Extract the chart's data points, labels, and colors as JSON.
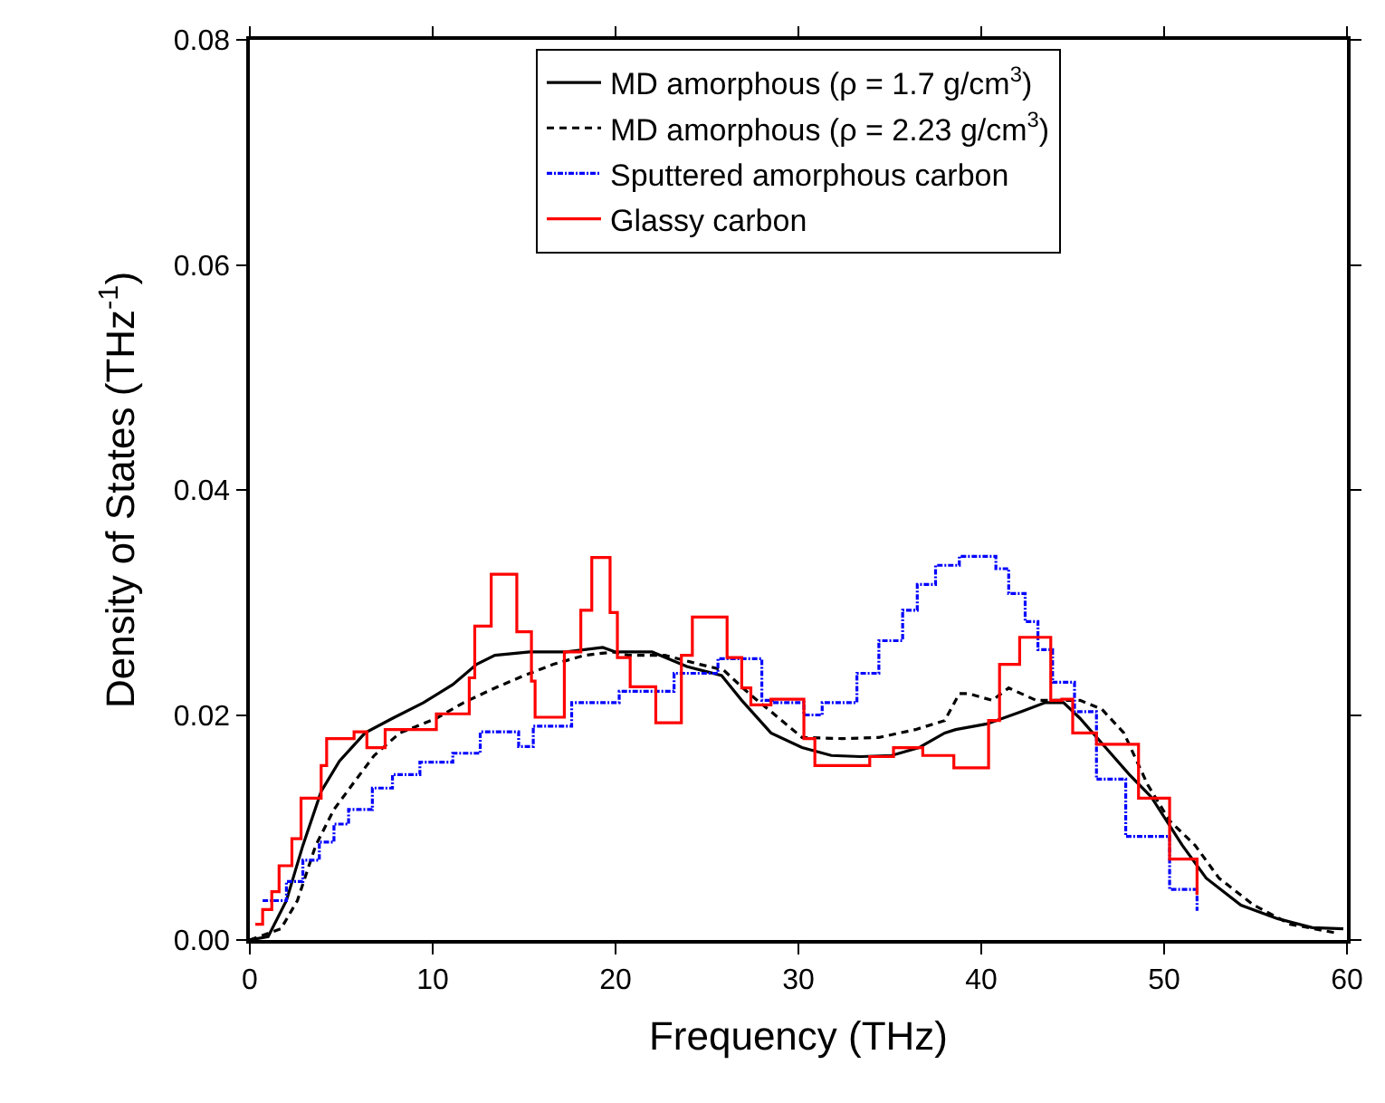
{
  "chart_data": {
    "type": "line",
    "xlabel": "Frequency (THz)",
    "ylabel": "Density of States (THz$^{-1}$)",
    "xlim": [
      0,
      60
    ],
    "xticks": [
      0,
      10,
      20,
      30,
      40,
      50,
      60
    ],
    "ylim": [
      0,
      0.08
    ],
    "yticks": [
      {
        "value": 0,
        "label": "0.00"
      },
      {
        "value": 0.02,
        "label": "0.02"
      },
      {
        "value": 0.04,
        "label": "0.04"
      },
      {
        "value": 0.06,
        "label": "0.06"
      },
      {
        "value": 0.08,
        "label": "0.08"
      }
    ],
    "legend": "top",
    "marker": "none",
    "series": [
      {
        "name": "MD amorphous (ρ = 1.7 g/cm$^{3}$)",
        "color": "#000000",
        "line_style": "solid",
        "x": [
          0,
          1.0,
          2.0,
          2.9,
          3.9,
          4.9,
          6.3,
          7.8,
          9.5,
          11.1,
          12.4,
          13.4,
          15.3,
          17.3,
          19.3,
          20.0,
          22.0,
          23.9,
          25.8,
          26.9,
          28.5,
          30.2,
          31.8,
          33.4,
          35.1,
          36.6,
          38.0,
          38.6,
          40.3,
          42.2,
          43.5,
          44.5,
          45.4,
          46.8,
          48.1,
          49.3,
          51.0,
          52.3,
          54.2,
          56.2,
          58.1,
          59.8
        ],
        "values": [
          0,
          0.0003,
          0.0035,
          0.0084,
          0.0132,
          0.0159,
          0.0184,
          0.0197,
          0.0211,
          0.0227,
          0.0245,
          0.0253,
          0.0256,
          0.0256,
          0.026,
          0.0256,
          0.0256,
          0.0243,
          0.0235,
          0.0213,
          0.0184,
          0.0171,
          0.0164,
          0.0163,
          0.0164,
          0.0171,
          0.0184,
          0.0187,
          0.0192,
          0.0203,
          0.0211,
          0.0211,
          0.0197,
          0.0171,
          0.0147,
          0.0127,
          0.0084,
          0.0055,
          0.0031,
          0.0019,
          0.0011,
          0.001
        ]
      },
      {
        "name": "MD amorphous (ρ = 2.23 g/cm$^{3}$)",
        "color": "#000000",
        "line_style": "dashed",
        "x": [
          0,
          1.7,
          2.6,
          3.6,
          4.6,
          5.6,
          6.8,
          8.2,
          10.2,
          11.7,
          13.4,
          15.0,
          16.6,
          18.3,
          19.9,
          20.7,
          22.7,
          24.6,
          25.9,
          27.3,
          28.5,
          30.2,
          32.4,
          34.4,
          36.4,
          38.0,
          38.8,
          39.3,
          40.6,
          41.5,
          43.0,
          44.2,
          45.4,
          46.6,
          47.8,
          49.1,
          50.3,
          51.7,
          53.0,
          54.9,
          56.9,
          59.5
        ],
        "values": [
          0,
          0.001,
          0.0035,
          0.0084,
          0.0116,
          0.0138,
          0.0164,
          0.0184,
          0.0197,
          0.0211,
          0.0224,
          0.0235,
          0.0245,
          0.0253,
          0.0256,
          0.0253,
          0.0253,
          0.0245,
          0.024,
          0.0219,
          0.0203,
          0.018,
          0.0179,
          0.018,
          0.0187,
          0.0195,
          0.0219,
          0.0219,
          0.0213,
          0.0224,
          0.0213,
          0.0213,
          0.0213,
          0.0205,
          0.0184,
          0.0138,
          0.0106,
          0.0084,
          0.0055,
          0.0031,
          0.0014,
          0.0006
        ]
      },
      {
        "name": "Sputtered amorphous carbon",
        "color": "#0000ff",
        "type": "step",
        "line_style": "dashdot",
        "x": [
          0.7,
          2.0,
          2.9,
          3.8,
          4.6,
          5.4,
          6.7,
          7.8,
          9.3,
          11.1,
          12.6,
          14.7,
          15.5,
          17.6,
          20.2,
          23.2,
          25.6,
          28.0,
          28.7,
          30.3,
          31.3,
          33.2,
          34.4,
          35.7,
          36.5,
          37.5,
          38.8,
          40.8,
          41.5,
          42.4,
          43.1,
          43.9,
          45.1,
          46.3,
          47.9,
          50.3,
          51.8
        ],
        "values": [
          0.0035,
          0.0052,
          0.0071,
          0.0087,
          0.0103,
          0.0116,
          0.0135,
          0.0147,
          0.0158,
          0.0166,
          0.0185,
          0.0172,
          0.019,
          0.0211,
          0.0221,
          0.0237,
          0.025,
          0.0213,
          0.0211,
          0.02,
          0.0211,
          0.0237,
          0.0266,
          0.0293,
          0.0316,
          0.0333,
          0.0341,
          0.033,
          0.0308,
          0.0283,
          0.0258,
          0.0229,
          0.0203,
          0.0143,
          0.0092,
          0.0045,
          0.0026
        ]
      },
      {
        "name": "Glassy carbon",
        "color": "#ff0000",
        "type": "step",
        "line_style": "solid",
        "x": [
          0.3,
          0.7,
          1.2,
          1.6,
          2.3,
          2.8,
          3.9,
          4.2,
          5.7,
          6.4,
          7.4,
          10.2,
          12.0,
          12.3,
          13.2,
          14.6,
          15.4,
          15.6,
          17.2,
          18.1,
          18.7,
          19.7,
          20.1,
          20.8,
          22.2,
          23.6,
          24.2,
          26.1,
          26.9,
          27.4,
          28.5,
          30.3,
          30.9,
          33.9,
          35.2,
          36.8,
          38.5,
          40.4,
          41.0,
          42.1,
          43.8,
          44.4,
          45.0,
          46.3,
          48.6,
          50.3,
          51.8
        ],
        "values": [
          0.0014,
          0.0027,
          0.0043,
          0.0066,
          0.009,
          0.0126,
          0.0155,
          0.0179,
          0.0185,
          0.0171,
          0.0187,
          0.0201,
          0.0233,
          0.0279,
          0.0325,
          0.0274,
          0.023,
          0.0198,
          0.0256,
          0.0293,
          0.034,
          0.0291,
          0.0251,
          0.0225,
          0.0193,
          0.0253,
          0.0287,
          0.0251,
          0.0224,
          0.0209,
          0.0214,
          0.0179,
          0.0155,
          0.0163,
          0.0171,
          0.0164,
          0.0153,
          0.0195,
          0.0245,
          0.0269,
          0.0213,
          0.0214,
          0.0184,
          0.0174,
          0.0126,
          0.0072,
          0.004
        ]
      }
    ]
  }
}
